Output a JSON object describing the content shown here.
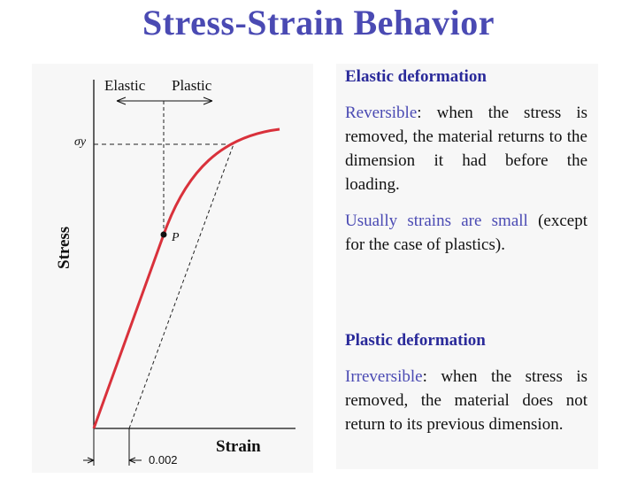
{
  "title": "Stress-Strain Behavior",
  "figure": {
    "region_elastic": "Elastic",
    "region_plastic": "Plastic",
    "yield_label": "σy",
    "point_label": "P",
    "y_axis_label": "Stress",
    "x_axis_label": "Strain",
    "offset_label": "0.002",
    "colors": {
      "curve": "#d9313b",
      "axes": "#111111"
    }
  },
  "elastic": {
    "heading": "Elastic deformation",
    "p1_keyword": "Reversible",
    "p1_rest": ": when the stress is removed, the material returns to the dimension it had before the loading.",
    "p2_keyword": "Usually strains are small",
    "p2_rest": " (except for the case of plastics)."
  },
  "plastic": {
    "heading": "Plastic deformation",
    "p1_keyword": "Irreversible",
    "p1_rest": ": when the stress is removed, the material does not return to its previous dimension."
  }
}
